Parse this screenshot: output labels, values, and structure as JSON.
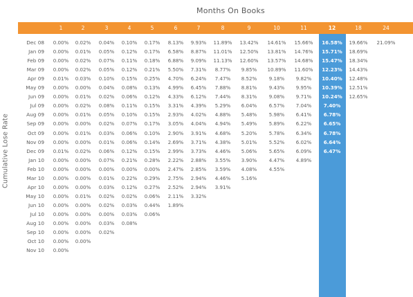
{
  "chart_data": {
    "type": "table",
    "title": "Months On Books",
    "ylabel": "Cumulative Lose Rate",
    "highlight_column": "12",
    "colors": {
      "header": "#f39431",
      "highlight": "#4b9bd9",
      "text": "#5d5d5d"
    },
    "columns": [
      "1",
      "2",
      "3",
      "4",
      "5",
      "6",
      "7",
      "8",
      "9",
      "10",
      "11",
      "12",
      "18",
      "24"
    ],
    "rows": [
      {
        "label": "Dec 08",
        "values": [
          "0.00%",
          "0.02%",
          "0.04%",
          "0.10%",
          "0.17%",
          "8.13%",
          "9.93%",
          "11.89%",
          "13.42%",
          "14.61%",
          "15.66%",
          "16.58%",
          "19.66%",
          "21.09%"
        ]
      },
      {
        "label": "Jan 09",
        "values": [
          "0.00%",
          "0.01%",
          "0.05%",
          "0.12%",
          "0.17%",
          "6.58%",
          "8.87%",
          "11.01%",
          "12.50%",
          "13.81%",
          "14.76%",
          "15.71%",
          "18.69%",
          ""
        ]
      },
      {
        "label": "Feb 09",
        "values": [
          "0.00%",
          "0.02%",
          "0.07%",
          "0.11%",
          "0.18%",
          "6.88%",
          "9.09%",
          "11.13%",
          "12.60%",
          "13.57%",
          "14.68%",
          "15.47%",
          "18.34%",
          ""
        ]
      },
      {
        "label": "Mar 09",
        "values": [
          "0.00%",
          "0.02%",
          "0.05%",
          "0.12%",
          "0.21%",
          "5.50%",
          "7.31%",
          "8.77%",
          "9.85%",
          "10.89%",
          "11.60%",
          "12.23%",
          "14.43%",
          ""
        ]
      },
      {
        "label": "Apr 09",
        "values": [
          "0.01%",
          "0.03%",
          "0.10%",
          "0.15%",
          "0.25%",
          "4.70%",
          "6.24%",
          "7.47%",
          "8.52%",
          "9.18%",
          "9.82%",
          "10.40%",
          "12.48%",
          ""
        ]
      },
      {
        "label": "May 09",
        "values": [
          "0.00%",
          "0.00%",
          "0.04%",
          "0.08%",
          "0.13%",
          "4.99%",
          "6.45%",
          "7.88%",
          "8.81%",
          "9.43%",
          "9.95%",
          "10.39%",
          "12.51%",
          ""
        ]
      },
      {
        "label": "Jun 09",
        "values": [
          "0.00%",
          "0.01%",
          "0.02%",
          "0.06%",
          "0.12%",
          "4.33%",
          "6.12%",
          "7.44%",
          "8.31%",
          "9.08%",
          "9.71%",
          "10.24%",
          "12.65%",
          ""
        ]
      },
      {
        "label": "Jul 09",
        "values": [
          "0.00%",
          "0.02%",
          "0.08%",
          "0.11%",
          "0.15%",
          "3.31%",
          "4.39%",
          "5.29%",
          "6.04%",
          "6.57%",
          "7.04%",
          "7.40%",
          "",
          ""
        ]
      },
      {
        "label": "Aug 09",
        "values": [
          "0.00%",
          "0.01%",
          "0.05%",
          "0.10%",
          "0.15%",
          "2.93%",
          "4.02%",
          "4.88%",
          "5.48%",
          "5.98%",
          "6.41%",
          "6.78%",
          "",
          ""
        ]
      },
      {
        "label": "Sep 09",
        "values": [
          "0.00%",
          "0.00%",
          "0.02%",
          "0.07%",
          "0.17%",
          "3.05%",
          "4.04%",
          "4.94%",
          "5.49%",
          "5.89%",
          "6.22%",
          "6.65%",
          "",
          ""
        ]
      },
      {
        "label": "Oct 09",
        "values": [
          "0.00%",
          "0.01%",
          "0.03%",
          "0.06%",
          "0.10%",
          "2.90%",
          "3.91%",
          "4.68%",
          "5.20%",
          "5.78%",
          "6.34%",
          "6.78%",
          "",
          ""
        ]
      },
      {
        "label": "Nov 09",
        "values": [
          "0.00%",
          "0.00%",
          "0.01%",
          "0.06%",
          "0.14%",
          "2.69%",
          "3.71%",
          "4.38%",
          "5.01%",
          "5.52%",
          "6.02%",
          "6.64%",
          "",
          ""
        ]
      },
      {
        "label": "Dec 09",
        "values": [
          "0.01%",
          "0.02%",
          "0.06%",
          "0.12%",
          "0.15%",
          "2.99%",
          "3.73%",
          "4.46%",
          "5.06%",
          "5.65%",
          "6.09%",
          "6.47%",
          "",
          ""
        ]
      },
      {
        "label": "Jan 10",
        "values": [
          "0.00%",
          "0.00%",
          "0.07%",
          "0.21%",
          "0.28%",
          "2.22%",
          "2.88%",
          "3.55%",
          "3.90%",
          "4.47%",
          "4.89%",
          "",
          "",
          ""
        ]
      },
      {
        "label": "Feb 10",
        "values": [
          "0.00%",
          "0.00%",
          "0.00%",
          "0.00%",
          "0.00%",
          "2.47%",
          "2.85%",
          "3.59%",
          "4.08%",
          "4.55%",
          "",
          "",
          "",
          ""
        ]
      },
      {
        "label": "Mar 10",
        "values": [
          "0.00%",
          "0.00%",
          "0.01%",
          "0.22%",
          "0.29%",
          "2.75%",
          "2.94%",
          "4.46%",
          "5.16%",
          "",
          "",
          "",
          "",
          ""
        ]
      },
      {
        "label": "Apr 10",
        "values": [
          "0.00%",
          "0.00%",
          "0.03%",
          "0.12%",
          "0.27%",
          "2.52%",
          "2.94%",
          "3.91%",
          "",
          "",
          "",
          "",
          "",
          ""
        ]
      },
      {
        "label": "May 10",
        "values": [
          "0.00%",
          "0.01%",
          "0.02%",
          "0.02%",
          "0.06%",
          "2.11%",
          "3.32%",
          "",
          "",
          "",
          "",
          "",
          "",
          ""
        ]
      },
      {
        "label": "Jun 10",
        "values": [
          "0.00%",
          "0.00%",
          "0.02%",
          "0.03%",
          "0.44%",
          "1.89%",
          "",
          "",
          "",
          "",
          "",
          "",
          "",
          ""
        ]
      },
      {
        "label": "Jul 10",
        "values": [
          "0.00%",
          "0.00%",
          "0.00%",
          "0.03%",
          "0.06%",
          "",
          "",
          "",
          "",
          "",
          "",
          "",
          "",
          ""
        ]
      },
      {
        "label": "Aug 10",
        "values": [
          "0.00%",
          "0.00%",
          "0.03%",
          "0.08%",
          "",
          "",
          "",
          "",
          "",
          "",
          "",
          "",
          "",
          ""
        ]
      },
      {
        "label": "Sep 10",
        "values": [
          "0.00%",
          "0.00%",
          "0.02%",
          "",
          "",
          "",
          "",
          "",
          "",
          "",
          "",
          "",
          "",
          ""
        ]
      },
      {
        "label": "Oct 10",
        "values": [
          "0.00%",
          "0.00%",
          "",
          "",
          "",
          "",
          "",
          "",
          "",
          "",
          "",
          "",
          "",
          ""
        ]
      },
      {
        "label": "Nov 10",
        "values": [
          "0.00%",
          "",
          "",
          "",
          "",
          "",
          "",
          "",
          "",
          "",
          "",
          "",
          "",
          ""
        ]
      }
    ]
  }
}
